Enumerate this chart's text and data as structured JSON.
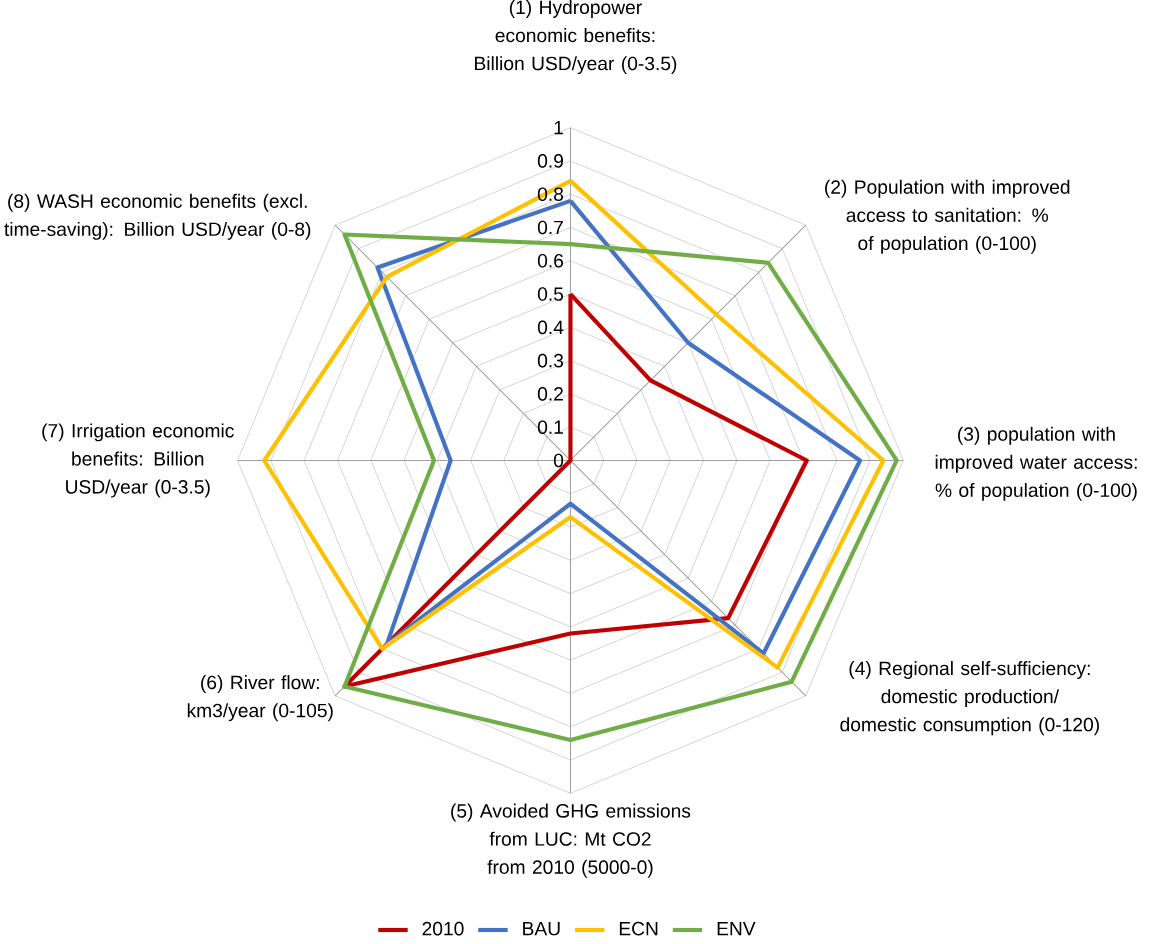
{
  "chart_data": {
    "type": "radar",
    "categories": [
      "(1) Hydropower economic benefits: Billion USD/year (0-3.5)",
      "(2) Population with improved access to sanitation: % of population (0-100)",
      "(3) population with improved water access: % of population (0-100)",
      "(4) Regional self-sufficiency: domestic production/ domestic consumption (0-120)",
      "(5) Avoided GHG emissions from LUC: Mt CO2 from 2010 (5000-0)",
      "(6) River flow: km3/year (0-105)",
      "(7) Irrigation economic benefits: Billion USD/year (0-3.5)",
      "(8) WASH economic benefits (excl. time-saving): Billion USD/year (0-8)"
    ],
    "series": [
      {
        "name": "2010",
        "color": "#c00000",
        "values": [
          0.5,
          0.34,
          0.71,
          0.67,
          0.52,
          0.96,
          0,
          0
        ]
      },
      {
        "name": "BAU",
        "color": "#4472c4",
        "values": [
          0.78,
          0.5,
          0.87,
          0.82,
          0.13,
          0.78,
          0.36,
          0.82
        ]
      },
      {
        "name": "ECN",
        "color": "#ffc000",
        "values": [
          0.84,
          0.62,
          0.94,
          0.88,
          0.17,
          0.8,
          0.92,
          0.78
        ]
      },
      {
        "name": "ENV",
        "color": "#70ad47",
        "values": [
          0.65,
          0.84,
          0.98,
          0.94,
          0.84,
          0.96,
          0.41,
          0.96
        ]
      }
    ],
    "ylim": [
      0,
      1
    ],
    "yticks": [
      0,
      0.1,
      0.2,
      0.3,
      0.4,
      0.5,
      0.6,
      0.7,
      0.8,
      0.9,
      1
    ],
    "grid": true,
    "legend": "bottom"
  }
}
